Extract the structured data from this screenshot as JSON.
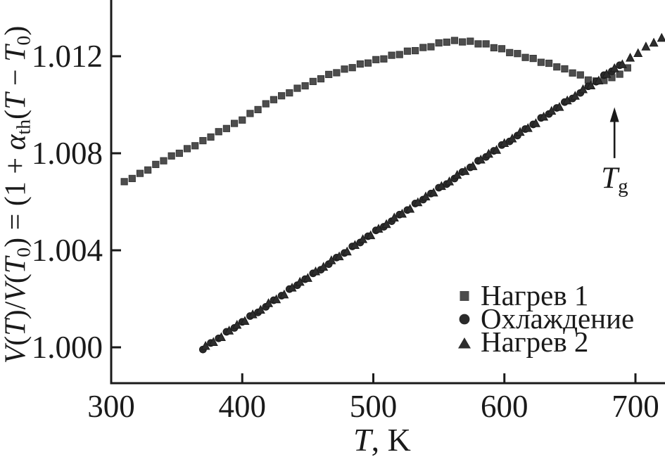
{
  "figure": {
    "background": "#ffffff",
    "axis_color": "#1a1a1a"
  },
  "chart_data": {
    "type": "scatter",
    "title": "",
    "xlabel_var": "T",
    "xlabel_rest": ", K",
    "ylabel_segments": [
      {
        "text": "V",
        "italic": true
      },
      {
        "text": "(",
        "italic": false
      },
      {
        "text": "T",
        "italic": true
      },
      {
        "text": ")/",
        "italic": false
      },
      {
        "text": "V",
        "italic": true
      },
      {
        "text": "(",
        "italic": false
      },
      {
        "text": "T",
        "italic": true
      },
      {
        "text": "0",
        "sub": true
      },
      {
        "text": ") = (1 + ",
        "italic": false
      },
      {
        "text": "α",
        "italic": true
      },
      {
        "text": "th",
        "sub": true
      },
      {
        "text": "(",
        "italic": false
      },
      {
        "text": "T",
        "italic": true
      },
      {
        "text": " − ",
        "italic": false
      },
      {
        "text": "T",
        "italic": true
      },
      {
        "text": "0",
        "sub": true
      },
      {
        "text": ")",
        "italic": false
      }
    ],
    "xlim": [
      300,
      722.6
    ],
    "ylim": [
      0.99852,
      1.01432
    ],
    "grid": false,
    "legend_position": "lower right",
    "x_ticks": [
      {
        "v": 300,
        "label": "300"
      },
      {
        "v": 400,
        "label": "400"
      },
      {
        "v": 500,
        "label": "500"
      },
      {
        "v": 600,
        "label": "600"
      },
      {
        "v": 700,
        "label": "700"
      }
    ],
    "y_ticks": [
      {
        "v": 1.0,
        "label": "1.000"
      },
      {
        "v": 1.004,
        "label": "1.004"
      },
      {
        "v": 1.008,
        "label": "1.008"
      },
      {
        "v": 1.012,
        "label": "1.012"
      }
    ],
    "annotation": {
      "label_var": "T",
      "label_sub": "g",
      "T": 684,
      "arrow_v_from": 1.0078,
      "arrow_v_to": 1.0099,
      "label_v": 1.0076
    },
    "series": [
      {
        "name": "Нагрев 1",
        "marker": "square",
        "color": "#4d4d4d",
        "edge": "#383838",
        "points": [
          [
            310,
            1.00683
          ],
          [
            316,
            1.00696
          ],
          [
            322,
            1.00717
          ],
          [
            328,
            1.00731
          ],
          [
            334,
            1.00754
          ],
          [
            340,
            1.00769
          ],
          [
            346,
            1.00789
          ],
          [
            352,
            1.008
          ],
          [
            358,
            1.00819
          ],
          [
            364,
            1.00831
          ],
          [
            370,
            1.00852
          ],
          [
            376,
            1.00867
          ],
          [
            382,
            1.00889
          ],
          [
            388,
            1.00902
          ],
          [
            394,
            1.00923
          ],
          [
            400,
            1.00937
          ],
          [
            406,
            1.00964
          ],
          [
            412,
            1.0098
          ],
          [
            418,
            1.01004
          ],
          [
            424,
            1.01021
          ],
          [
            430,
            1.01037
          ],
          [
            436,
            1.01049
          ],
          [
            442,
            1.01068
          ],
          [
            448,
            1.01078
          ],
          [
            454,
            1.01096
          ],
          [
            460,
            1.01107
          ],
          [
            466,
            1.01125
          ],
          [
            472,
            1.01132
          ],
          [
            478,
            1.01147
          ],
          [
            484,
            1.01153
          ],
          [
            490,
            1.01168
          ],
          [
            496,
            1.01172
          ],
          [
            502,
            1.01186
          ],
          [
            508,
            1.01189
          ],
          [
            514,
            1.01204
          ],
          [
            520,
            1.01207
          ],
          [
            526,
            1.01221
          ],
          [
            532,
            1.01223
          ],
          [
            538,
            1.01236
          ],
          [
            544,
            1.01239
          ],
          [
            550,
            1.01255
          ],
          [
            556,
            1.01258
          ],
          [
            562,
            1.01265
          ],
          [
            568,
            1.01259
          ],
          [
            574,
            1.01262
          ],
          [
            580,
            1.01251
          ],
          [
            586,
            1.01251
          ],
          [
            592,
            1.01235
          ],
          [
            598,
            1.01231
          ],
          [
            604,
            1.01215
          ],
          [
            610,
            1.01211
          ],
          [
            616,
            1.01195
          ],
          [
            622,
            1.01191
          ],
          [
            628,
            1.01175
          ],
          [
            634,
            1.01171
          ],
          [
            640,
            1.01156
          ],
          [
            646,
            1.01148
          ],
          [
            652,
            1.01131
          ],
          [
            658,
            1.01123
          ],
          [
            664,
            1.01102
          ],
          [
            670,
            1.01098
          ],
          [
            676,
            1.011
          ],
          [
            682,
            1.01112
          ],
          [
            688,
            1.01126
          ],
          [
            694,
            1.01152
          ]
        ]
      },
      {
        "name": "Охлаждение",
        "marker": "circle",
        "color": "#2a2a2a",
        "edge": "#1c1c1c",
        "points": [
          [
            370,
            0.99991
          ],
          [
            376,
            1.00018
          ],
          [
            382,
            1.00037
          ],
          [
            388,
            1.00064
          ],
          [
            394,
            1.0008
          ],
          [
            400,
            1.00105
          ],
          [
            406,
            1.00129
          ],
          [
            412,
            1.00144
          ],
          [
            418,
            1.00167
          ],
          [
            424,
            1.00194
          ],
          [
            430,
            1.00213
          ],
          [
            436,
            1.0024
          ],
          [
            442,
            1.00256
          ],
          [
            448,
            1.00281
          ],
          [
            454,
            1.00305
          ],
          [
            460,
            1.0032
          ],
          [
            466,
            1.00343
          ],
          [
            472,
            1.0037
          ],
          [
            478,
            1.00389
          ],
          [
            484,
            1.00416
          ],
          [
            490,
            1.00432
          ],
          [
            496,
            1.00458
          ],
          [
            502,
            1.00482
          ],
          [
            508,
            1.00497
          ],
          [
            514,
            1.0052
          ],
          [
            520,
            1.00547
          ],
          [
            526,
            1.00566
          ],
          [
            532,
            1.00593
          ],
          [
            538,
            1.00609
          ],
          [
            544,
            1.00634
          ],
          [
            550,
            1.00658
          ],
          [
            556,
            1.00673
          ],
          [
            562,
            1.00696
          ],
          [
            568,
            1.00723
          ],
          [
            574,
            1.00742
          ],
          [
            580,
            1.00769
          ],
          [
            586,
            1.00785
          ],
          [
            592,
            1.0081
          ],
          [
            598,
            1.00834
          ],
          [
            604,
            1.00849
          ],
          [
            610,
            1.00873
          ],
          [
            616,
            1.009
          ],
          [
            622,
            1.00919
          ],
          [
            628,
            1.00946
          ],
          [
            634,
            1.00962
          ],
          [
            640,
            1.00987
          ],
          [
            646,
            1.01011
          ],
          [
            652,
            1.01026
          ],
          [
            658,
            1.01049
          ],
          [
            664,
            1.01076
          ],
          [
            670,
            1.01095
          ],
          [
            676,
            1.01122
          ],
          [
            682,
            1.01138
          ],
          [
            688,
            1.01163
          ]
        ]
      },
      {
        "name": "Нагрев 2",
        "marker": "triangle",
        "color": "#2d2d2d",
        "edge": "#1c1c1c",
        "points": [
          [
            372,
            1.00005
          ],
          [
            378,
            1.00021
          ],
          [
            384,
            1.00041
          ],
          [
            390,
            1.00068
          ],
          [
            396,
            1.00092
          ],
          [
            402,
            1.00108
          ],
          [
            408,
            1.00135
          ],
          [
            414,
            1.00154
          ],
          [
            420,
            1.00181
          ],
          [
            426,
            1.00197
          ],
          [
            432,
            1.00217
          ],
          [
            438,
            1.00245
          ],
          [
            444,
            1.00269
          ],
          [
            450,
            1.00285
          ],
          [
            456,
            1.00312
          ],
          [
            462,
            1.00331
          ],
          [
            468,
            1.00358
          ],
          [
            474,
            1.00374
          ],
          [
            480,
            1.00394
          ],
          [
            486,
            1.00421
          ],
          [
            492,
            1.00445
          ],
          [
            498,
            1.00461
          ],
          [
            504,
            1.00488
          ],
          [
            510,
            1.00507
          ],
          [
            516,
            1.00534
          ],
          [
            522,
            1.0055
          ],
          [
            528,
            1.0057
          ],
          [
            534,
            1.00597
          ],
          [
            540,
            1.00621
          ],
          [
            546,
            1.00637
          ],
          [
            552,
            1.00664
          ],
          [
            558,
            1.00683
          ],
          [
            564,
            1.0071
          ],
          [
            570,
            1.00726
          ],
          [
            576,
            1.00746
          ],
          [
            582,
            1.00773
          ],
          [
            588,
            1.00797
          ],
          [
            594,
            1.00813
          ],
          [
            600,
            1.00841
          ],
          [
            606,
            1.0086
          ],
          [
            612,
            1.00887
          ],
          [
            618,
            1.00903
          ],
          [
            624,
            1.00923
          ],
          [
            630,
            1.0095
          ],
          [
            636,
            1.00974
          ],
          [
            642,
            1.0099
          ],
          [
            648,
            1.01017
          ],
          [
            654,
            1.01036
          ],
          [
            660,
            1.01063
          ],
          [
            666,
            1.01079
          ],
          [
            672,
            1.01099
          ],
          [
            678,
            1.01126
          ],
          [
            684,
            1.0115
          ],
          [
            690,
            1.01166
          ],
          [
            696,
            1.01193
          ],
          [
            702,
            1.01212
          ],
          [
            708,
            1.01239
          ],
          [
            714,
            1.01255
          ],
          [
            720,
            1.01275
          ]
        ]
      }
    ]
  }
}
